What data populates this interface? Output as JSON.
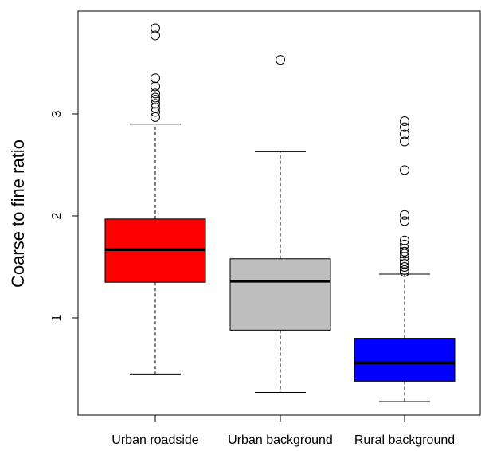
{
  "chart_data": {
    "type": "box",
    "ylabel": "Coarse to fine ratio",
    "xlabel": "",
    "ylim": [
      0.05,
      4.0
    ],
    "yticks": [
      1,
      2,
      3
    ],
    "categories": [
      "Urban roadside",
      "Urban background",
      "Rural background"
    ],
    "boxes": [
      {
        "name": "Urban roadside",
        "color": "#ff0000",
        "whisker_low": 0.45,
        "q1": 1.35,
        "median": 1.67,
        "q3": 1.97,
        "whisker_high": 2.9,
        "outliers": [
          2.97,
          3.02,
          3.06,
          3.1,
          3.14,
          3.16,
          3.2,
          3.27,
          3.35,
          3.77,
          3.84
        ]
      },
      {
        "name": "Urban background",
        "color": "#bebebe",
        "whisker_low": 0.27,
        "q1": 0.88,
        "median": 1.36,
        "q3": 1.58,
        "whisker_high": 2.63,
        "outliers": [
          3.53
        ]
      },
      {
        "name": "Rural background",
        "color": "#0000ff",
        "whisker_low": 0.18,
        "q1": 0.38,
        "median": 0.56,
        "q3": 0.8,
        "whisker_high": 1.43,
        "outliers": [
          1.45,
          1.47,
          1.5,
          1.53,
          1.56,
          1.6,
          1.63,
          1.65,
          1.68,
          1.72,
          1.76,
          1.95,
          2.01,
          2.45,
          2.73,
          2.8,
          2.87,
          2.93
        ]
      }
    ],
    "grid": false,
    "legend": "none"
  }
}
